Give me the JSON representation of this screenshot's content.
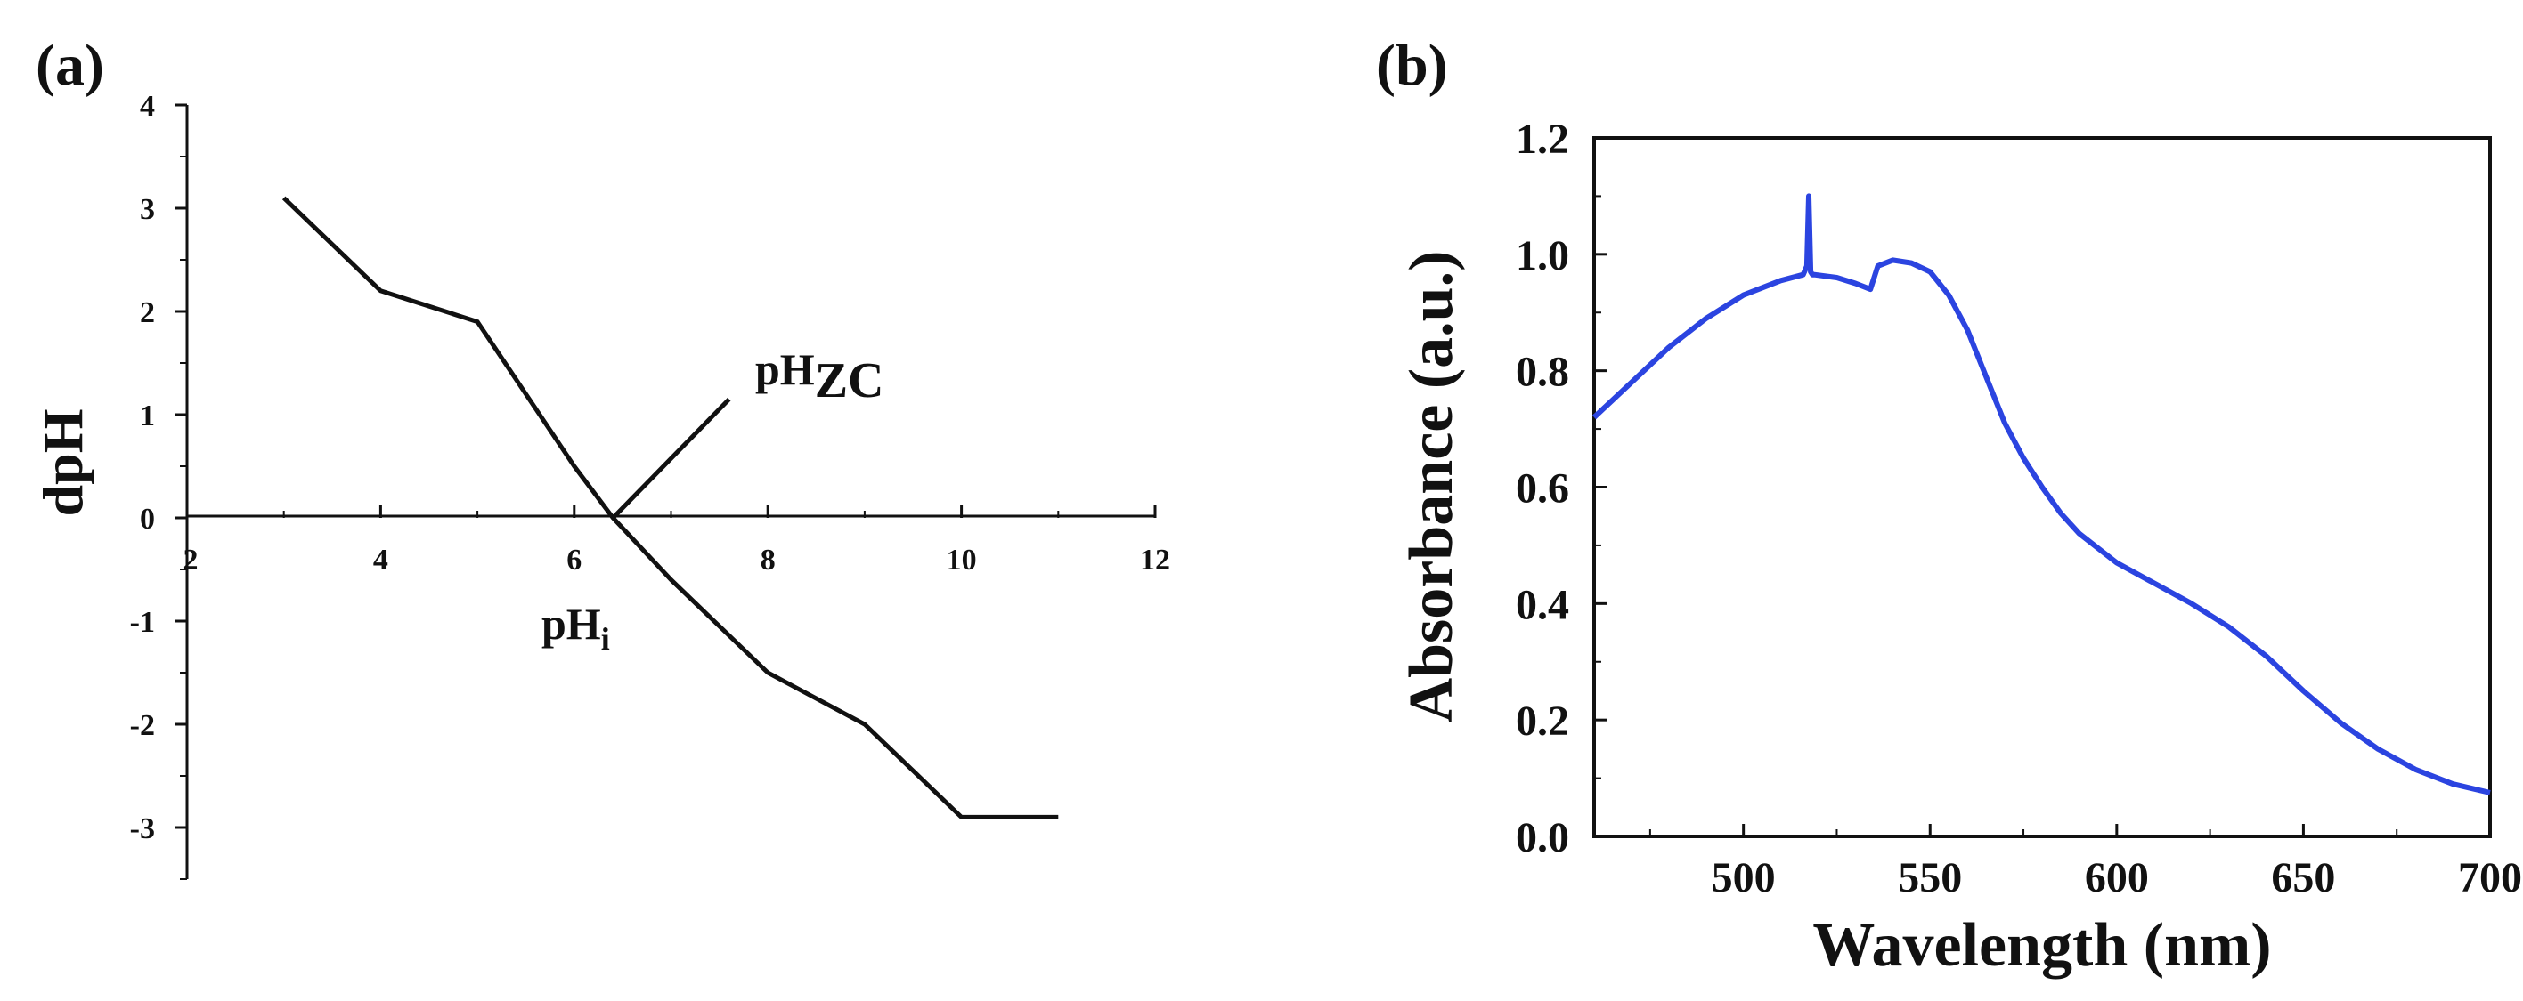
{
  "chart_data": [
    {
      "panel": "(a)",
      "type": "line",
      "title": "",
      "xlabel": "",
      "ylabel": "dpH",
      "xlim": [
        2,
        12
      ],
      "ylim": [
        -3.5,
        4
      ],
      "xticks": [
        2,
        4,
        6,
        8,
        10,
        12
      ],
      "yticks": [
        -3,
        -2,
        -1,
        0,
        1,
        2,
        3,
        4
      ],
      "series": [
        {
          "name": "dpH",
          "color": "#111111",
          "x": [
            3,
            4,
            5,
            6,
            6.4,
            7,
            8,
            9,
            10,
            11
          ],
          "y": [
            3.1,
            2.2,
            1.9,
            0.5,
            0.0,
            -0.6,
            -1.5,
            -2.0,
            -2.9,
            -2.9
          ]
        }
      ],
      "annotations": [
        {
          "id": "pHzc",
          "text_main": "pH",
          "text_sub": "ZC",
          "leader_from": [
            6.4,
            0
          ],
          "leader_to": [
            7.6,
            1.15
          ]
        },
        {
          "id": "pHi",
          "text_main": "pH",
          "text_sub": "i",
          "at": [
            6.0,
            -1.2
          ]
        }
      ]
    },
    {
      "panel": "(b)",
      "type": "line",
      "title": "",
      "xlabel": "Wavelength (nm)",
      "ylabel": "Absorbance (a.u.)",
      "xlim": [
        460,
        700
      ],
      "ylim": [
        0,
        1.2
      ],
      "xticks": [
        500,
        550,
        600,
        650,
        700
      ],
      "ytick_labels": [
        "0.0",
        "0.2",
        "0.4",
        "0.6",
        "0.8",
        "1.0",
        "1.2"
      ],
      "yticks": [
        0,
        0.2,
        0.4,
        0.6,
        0.8,
        1.0,
        1.2
      ],
      "series": [
        {
          "name": "Absorbance",
          "color": "#2b44e0",
          "x": [
            460,
            470,
            480,
            490,
            500,
            510,
            516,
            517,
            517.5,
            518,
            518.5,
            519,
            525,
            530,
            534,
            536,
            540,
            545,
            550,
            555,
            560,
            565,
            570,
            575,
            580,
            585,
            590,
            600,
            610,
            620,
            630,
            640,
            650,
            660,
            670,
            680,
            690,
            700
          ],
          "y": [
            0.72,
            0.78,
            0.84,
            0.89,
            0.93,
            0.955,
            0.965,
            0.98,
            1.1,
            0.97,
            0.965,
            0.965,
            0.96,
            0.95,
            0.94,
            0.98,
            0.99,
            0.985,
            0.97,
            0.93,
            0.87,
            0.79,
            0.71,
            0.65,
            0.6,
            0.555,
            0.52,
            0.47,
            0.435,
            0.4,
            0.36,
            0.31,
            0.25,
            0.195,
            0.15,
            0.115,
            0.09,
            0.075
          ]
        }
      ]
    }
  ]
}
